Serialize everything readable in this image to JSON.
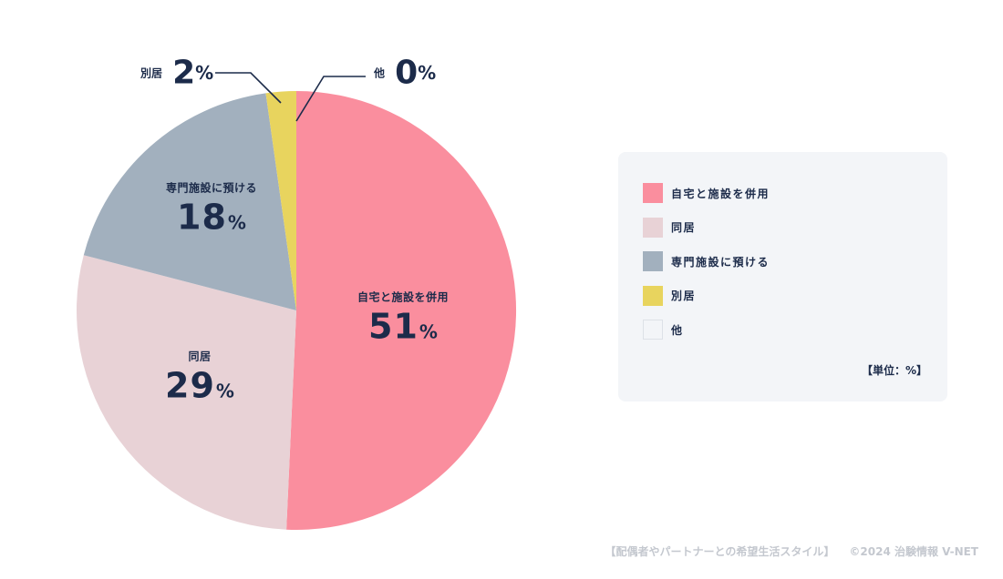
{
  "chart_data": {
    "type": "pie",
    "slices": [
      {
        "label": "自宅と施設を併用",
        "value": 51,
        "unit": "%",
        "color": "#fa8e9e"
      },
      {
        "label": "同居",
        "value": 29,
        "unit": "%",
        "color": "#e8d2d6"
      },
      {
        "label": "専門施設に預ける",
        "value": 18,
        "unit": "%",
        "color": "#a2b0be"
      },
      {
        "label": "別居",
        "value": 2,
        "unit": "%",
        "color": "#e8d45e"
      },
      {
        "label": "他",
        "value": 0,
        "unit": "%",
        "color": "#f3f5f8"
      }
    ],
    "legend_position": "right",
    "legend_unit_note": "【単位：%】"
  },
  "labels": {
    "s0": {
      "name": "自宅と施設を併用",
      "pct": "51",
      "unit": "%"
    },
    "s1": {
      "name": "同居",
      "pct": "29",
      "unit": "%"
    },
    "s2": {
      "name": "専門施設に預ける",
      "pct": "18",
      "unit": "%"
    },
    "s3": {
      "name": "別居",
      "pct": "2",
      "unit": "%"
    },
    "s4": {
      "name": "他",
      "pct": "0",
      "unit": "%"
    }
  },
  "legend": {
    "items": [
      {
        "label": "自宅と施設を併用",
        "color": "#fa8e9e"
      },
      {
        "label": "同居",
        "color": "#e8d2d6"
      },
      {
        "label": "専門施設に預ける",
        "color": "#a2b0be"
      },
      {
        "label": "別居",
        "color": "#e8d45e"
      },
      {
        "label": "他",
        "color": "#f3f5f8"
      }
    ],
    "unit_note": "【単位：%】"
  },
  "footer": {
    "source": "【配偶者やパートナーとの希望生活スタイル】",
    "copyright": "©2024 治験情報 V-NET"
  }
}
